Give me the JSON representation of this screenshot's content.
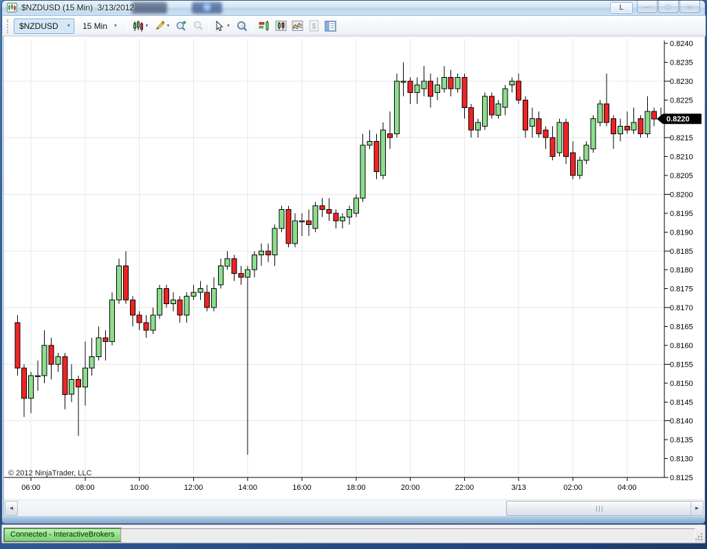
{
  "window": {
    "title": "$NZDUSD (15 Min)  3/13/2012",
    "link_button": "L",
    "minimize_glyph": "–",
    "maximize_glyph": "□",
    "close_glyph": "×"
  },
  "toolbar": {
    "instrument_value": "$NZDUSD",
    "interval_value": "15 Min",
    "dropdown_caret": "▼",
    "icon_names": [
      "chart-style-candles",
      "drawing-tools-pencil",
      "zoom-in",
      "zoom-out",
      "cursor",
      "data-box",
      "chart-trader",
      "data-series",
      "indicators",
      "strategies",
      "properties"
    ]
  },
  "chart": {
    "copyright": "© 2012 NinjaTrader, LLC"
  },
  "scrollbar": {
    "left_arrow": "◄",
    "right_arrow": "►"
  },
  "status_bar": {
    "connection_status": "Connected - InteractiveBrokers"
  },
  "chart_data": {
    "type": "candlestick",
    "instrument": "$NZDUSD",
    "interval": "15 Min",
    "date": "3/13/2012",
    "y_axis": {
      "min": 0.8125,
      "max": 0.824,
      "tick_step": 0.0005,
      "labels": [
        "0.8240",
        "0.8235",
        "0.8230",
        "0.8225",
        "0.8220",
        "0.8215",
        "0.8210",
        "0.8205",
        "0.8200",
        "0.8195",
        "0.8190",
        "0.8185",
        "0.8180",
        "0.8175",
        "0.8170",
        "0.8165",
        "0.8160",
        "0.8155",
        "0.8150",
        "0.8145",
        "0.8140",
        "0.8135",
        "0.8130",
        "0.8125"
      ],
      "grid_prices": [
        0.823,
        0.8215,
        0.82,
        0.8185,
        0.817,
        0.8155,
        0.814
      ],
      "last_price": 0.822,
      "last_price_label": "0.8220"
    },
    "x_axis": {
      "labels": [
        {
          "text": "06:00",
          "index": 2
        },
        {
          "text": "08:00",
          "index": 10
        },
        {
          "text": "10:00",
          "index": 18
        },
        {
          "text": "12:00",
          "index": 26
        },
        {
          "text": "14:00",
          "index": 34
        },
        {
          "text": "16:00",
          "index": 42
        },
        {
          "text": "18:00",
          "index": 50
        },
        {
          "text": "20:00",
          "index": 58
        },
        {
          "text": "22:00",
          "index": 66
        },
        {
          "text": "3/13",
          "index": 74
        },
        {
          "text": "02:00",
          "index": 82
        },
        {
          "text": "04:00",
          "index": 90
        }
      ]
    },
    "colors": {
      "up": "#8CDE8C",
      "down": "#EE2424",
      "wick": "#000000",
      "grid": "#E7E7E7",
      "axis": "#000000",
      "price_tag_bg": "#000000",
      "price_tag_fg": "#FFFFFF"
    },
    "candles": [
      {
        "t": "05:30",
        "o": 0.8166,
        "h": 0.8168,
        "l": 0.8152,
        "c": 0.8154
      },
      {
        "t": "05:45",
        "o": 0.8154,
        "h": 0.8155,
        "l": 0.8141,
        "c": 0.8146
      },
      {
        "t": "06:00",
        "o": 0.8146,
        "h": 0.8153,
        "l": 0.8142,
        "c": 0.8152
      },
      {
        "t": "06:15",
        "o": 0.8152,
        "h": 0.8156,
        "l": 0.8148,
        "c": 0.8152
      },
      {
        "t": "06:30",
        "o": 0.8152,
        "h": 0.8164,
        "l": 0.815,
        "c": 0.816
      },
      {
        "t": "06:45",
        "o": 0.816,
        "h": 0.8162,
        "l": 0.8151,
        "c": 0.8155
      },
      {
        "t": "07:00",
        "o": 0.8155,
        "h": 0.8158,
        "l": 0.8153,
        "c": 0.8157
      },
      {
        "t": "07:15",
        "o": 0.8157,
        "h": 0.8158,
        "l": 0.8143,
        "c": 0.8147
      },
      {
        "t": "07:30",
        "o": 0.8147,
        "h": 0.8155,
        "l": 0.8145,
        "c": 0.8151
      },
      {
        "t": "07:45",
        "o": 0.8151,
        "h": 0.8152,
        "l": 0.8136,
        "c": 0.8149
      },
      {
        "t": "08:00",
        "o": 0.8149,
        "h": 0.8161,
        "l": 0.8144,
        "c": 0.8154
      },
      {
        "t": "08:15",
        "o": 0.8154,
        "h": 0.8162,
        "l": 0.8152,
        "c": 0.8157
      },
      {
        "t": "08:30",
        "o": 0.8157,
        "h": 0.8165,
        "l": 0.8156,
        "c": 0.8162
      },
      {
        "t": "08:45",
        "o": 0.8162,
        "h": 0.8164,
        "l": 0.8156,
        "c": 0.8161
      },
      {
        "t": "09:00",
        "o": 0.8161,
        "h": 0.8174,
        "l": 0.816,
        "c": 0.8172
      },
      {
        "t": "09:15",
        "o": 0.8172,
        "h": 0.8183,
        "l": 0.8171,
        "c": 0.8181
      },
      {
        "t": "09:30",
        "o": 0.8181,
        "h": 0.8185,
        "l": 0.8171,
        "c": 0.8172
      },
      {
        "t": "09:45",
        "o": 0.8172,
        "h": 0.8173,
        "l": 0.8165,
        "c": 0.8168
      },
      {
        "t": "10:00",
        "o": 0.8168,
        "h": 0.8169,
        "l": 0.8164,
        "c": 0.8166
      },
      {
        "t": "10:15",
        "o": 0.8166,
        "h": 0.8168,
        "l": 0.8162,
        "c": 0.8164
      },
      {
        "t": "10:30",
        "o": 0.8164,
        "h": 0.817,
        "l": 0.8163,
        "c": 0.8168
      },
      {
        "t": "10:45",
        "o": 0.8168,
        "h": 0.8176,
        "l": 0.8167,
        "c": 0.8175
      },
      {
        "t": "11:00",
        "o": 0.8175,
        "h": 0.8176,
        "l": 0.817,
        "c": 0.8171
      },
      {
        "t": "11:15",
        "o": 0.8171,
        "h": 0.8174,
        "l": 0.8169,
        "c": 0.8172
      },
      {
        "t": "11:30",
        "o": 0.8172,
        "h": 0.8173,
        "l": 0.8166,
        "c": 0.8168
      },
      {
        "t": "11:45",
        "o": 0.8168,
        "h": 0.8174,
        "l": 0.8166,
        "c": 0.8173
      },
      {
        "t": "12:00",
        "o": 0.8173,
        "h": 0.8176,
        "l": 0.8172,
        "c": 0.8174
      },
      {
        "t": "12:15",
        "o": 0.8174,
        "h": 0.8177,
        "l": 0.8172,
        "c": 0.8175
      },
      {
        "t": "12:30",
        "o": 0.8174,
        "h": 0.8176,
        "l": 0.8169,
        "c": 0.817
      },
      {
        "t": "12:45",
        "o": 0.817,
        "h": 0.8178,
        "l": 0.8169,
        "c": 0.8175
      },
      {
        "t": "13:00",
        "o": 0.8176,
        "h": 0.8183,
        "l": 0.8175,
        "c": 0.8181
      },
      {
        "t": "13:15",
        "o": 0.8181,
        "h": 0.8185,
        "l": 0.818,
        "c": 0.8183
      },
      {
        "t": "13:30",
        "o": 0.8183,
        "h": 0.8184,
        "l": 0.8177,
        "c": 0.8179
      },
      {
        "t": "13:45",
        "o": 0.8179,
        "h": 0.8181,
        "l": 0.8176,
        "c": 0.8178
      },
      {
        "t": "14:00",
        "o": 0.8178,
        "h": 0.8181,
        "l": 0.8131,
        "c": 0.818
      },
      {
        "t": "14:15",
        "o": 0.818,
        "h": 0.8185,
        "l": 0.8178,
        "c": 0.8184
      },
      {
        "t": "14:30",
        "o": 0.8184,
        "h": 0.8187,
        "l": 0.8181,
        "c": 0.8185
      },
      {
        "t": "14:45",
        "o": 0.8185,
        "h": 0.8187,
        "l": 0.8182,
        "c": 0.8184
      },
      {
        "t": "15:00",
        "o": 0.8184,
        "h": 0.8192,
        "l": 0.8181,
        "c": 0.8191
      },
      {
        "t": "15:15",
        "o": 0.8191,
        "h": 0.8197,
        "l": 0.819,
        "c": 0.8196
      },
      {
        "t": "15:30",
        "o": 0.8196,
        "h": 0.8197,
        "l": 0.8186,
        "c": 0.8187
      },
      {
        "t": "15:45",
        "o": 0.8187,
        "h": 0.8195,
        "l": 0.8186,
        "c": 0.8193
      },
      {
        "t": "16:00",
        "o": 0.8193,
        "h": 0.8195,
        "l": 0.8189,
        "c": 0.8193
      },
      {
        "t": "16:15",
        "o": 0.8193,
        "h": 0.8196,
        "l": 0.8189,
        "c": 0.8192
      },
      {
        "t": "16:30",
        "o": 0.8191,
        "h": 0.8198,
        "l": 0.819,
        "c": 0.8197
      },
      {
        "t": "16:45",
        "o": 0.8197,
        "h": 0.8199,
        "l": 0.8194,
        "c": 0.8196
      },
      {
        "t": "17:00",
        "o": 0.8196,
        "h": 0.8199,
        "l": 0.8193,
        "c": 0.8195
      },
      {
        "t": "17:15",
        "o": 0.8195,
        "h": 0.8196,
        "l": 0.8191,
        "c": 0.8193
      },
      {
        "t": "17:30",
        "o": 0.8193,
        "h": 0.8195,
        "l": 0.8191,
        "c": 0.8194
      },
      {
        "t": "17:45",
        "o": 0.8194,
        "h": 0.8197,
        "l": 0.8192,
        "c": 0.8196
      },
      {
        "t": "18:00",
        "o": 0.8195,
        "h": 0.82,
        "l": 0.8194,
        "c": 0.8199
      },
      {
        "t": "18:15",
        "o": 0.8199,
        "h": 0.8216,
        "l": 0.8198,
        "c": 0.8213
      },
      {
        "t": "18:30",
        "o": 0.8213,
        "h": 0.8217,
        "l": 0.8212,
        "c": 0.8214
      },
      {
        "t": "18:45",
        "o": 0.8214,
        "h": 0.8216,
        "l": 0.8204,
        "c": 0.8206
      },
      {
        "t": "19:00",
        "o": 0.8205,
        "h": 0.8219,
        "l": 0.8204,
        "c": 0.8217
      },
      {
        "t": "19:15",
        "o": 0.8216,
        "h": 0.8222,
        "l": 0.8212,
        "c": 0.8215
      },
      {
        "t": "19:30",
        "o": 0.8216,
        "h": 0.8232,
        "l": 0.8215,
        "c": 0.823
      },
      {
        "t": "19:45",
        "o": 0.823,
        "h": 0.8235,
        "l": 0.8226,
        "c": 0.823
      },
      {
        "t": "20:00",
        "o": 0.823,
        "h": 0.8231,
        "l": 0.8224,
        "c": 0.8227
      },
      {
        "t": "20:15",
        "o": 0.8227,
        "h": 0.8231,
        "l": 0.8224,
        "c": 0.8229
      },
      {
        "t": "20:30",
        "o": 0.8228,
        "h": 0.8234,
        "l": 0.8226,
        "c": 0.823
      },
      {
        "t": "20:45",
        "o": 0.823,
        "h": 0.8232,
        "l": 0.8223,
        "c": 0.8226
      },
      {
        "t": "21:00",
        "o": 0.8227,
        "h": 0.8231,
        "l": 0.8225,
        "c": 0.8229
      },
      {
        "t": "21:15",
        "o": 0.8228,
        "h": 0.8234,
        "l": 0.8227,
        "c": 0.8231
      },
      {
        "t": "21:30",
        "o": 0.8231,
        "h": 0.8233,
        "l": 0.8226,
        "c": 0.8228
      },
      {
        "t": "21:45",
        "o": 0.8228,
        "h": 0.8232,
        "l": 0.8227,
        "c": 0.8231
      },
      {
        "t": "22:00",
        "o": 0.8231,
        "h": 0.8232,
        "l": 0.822,
        "c": 0.8223
      },
      {
        "t": "22:15",
        "o": 0.8223,
        "h": 0.8224,
        "l": 0.8215,
        "c": 0.8217
      },
      {
        "t": "22:30",
        "o": 0.8217,
        "h": 0.822,
        "l": 0.8215,
        "c": 0.8219
      },
      {
        "t": "22:45",
        "o": 0.8218,
        "h": 0.8227,
        "l": 0.8217,
        "c": 0.8226
      },
      {
        "t": "23:00",
        "o": 0.8226,
        "h": 0.8227,
        "l": 0.822,
        "c": 0.8221
      },
      {
        "t": "23:15",
        "o": 0.8221,
        "h": 0.8225,
        "l": 0.822,
        "c": 0.8224
      },
      {
        "t": "23:30",
        "o": 0.8223,
        "h": 0.8229,
        "l": 0.8221,
        "c": 0.8228
      },
      {
        "t": "23:45",
        "o": 0.8229,
        "h": 0.8231,
        "l": 0.8227,
        "c": 0.823
      },
      {
        "t": "00:00",
        "o": 0.823,
        "h": 0.8232,
        "l": 0.8224,
        "c": 0.8225
      },
      {
        "t": "00:15",
        "o": 0.8225,
        "h": 0.8226,
        "l": 0.8215,
        "c": 0.8217
      },
      {
        "t": "00:30",
        "o": 0.8218,
        "h": 0.8223,
        "l": 0.8215,
        "c": 0.822
      },
      {
        "t": "00:45",
        "o": 0.822,
        "h": 0.8222,
        "l": 0.8215,
        "c": 0.8216
      },
      {
        "t": "01:00",
        "o": 0.8217,
        "h": 0.8218,
        "l": 0.8212,
        "c": 0.8215
      },
      {
        "t": "01:15",
        "o": 0.8215,
        "h": 0.8218,
        "l": 0.8209,
        "c": 0.821
      },
      {
        "t": "01:30",
        "o": 0.8211,
        "h": 0.822,
        "l": 0.821,
        "c": 0.8219
      },
      {
        "t": "01:45",
        "o": 0.8219,
        "h": 0.822,
        "l": 0.8208,
        "c": 0.821
      },
      {
        "t": "02:00",
        "o": 0.8211,
        "h": 0.8214,
        "l": 0.8204,
        "c": 0.8205
      },
      {
        "t": "02:15",
        "o": 0.8205,
        "h": 0.821,
        "l": 0.8204,
        "c": 0.8209
      },
      {
        "t": "02:30",
        "o": 0.8209,
        "h": 0.8214,
        "l": 0.8208,
        "c": 0.8213
      },
      {
        "t": "02:45",
        "o": 0.8212,
        "h": 0.8221,
        "l": 0.8211,
        "c": 0.822
      },
      {
        "t": "03:00",
        "o": 0.8219,
        "h": 0.8225,
        "l": 0.8218,
        "c": 0.8224
      },
      {
        "t": "03:15",
        "o": 0.8224,
        "h": 0.8232,
        "l": 0.8218,
        "c": 0.8219
      },
      {
        "t": "03:30",
        "o": 0.822,
        "h": 0.8221,
        "l": 0.8212,
        "c": 0.8216
      },
      {
        "t": "03:45",
        "o": 0.8216,
        "h": 0.822,
        "l": 0.8214,
        "c": 0.8218
      },
      {
        "t": "04:00",
        "o": 0.8218,
        "h": 0.8222,
        "l": 0.8216,
        "c": 0.8217
      },
      {
        "t": "04:15",
        "o": 0.8217,
        "h": 0.8223,
        "l": 0.8216,
        "c": 0.8219
      },
      {
        "t": "04:30",
        "o": 0.822,
        "h": 0.8221,
        "l": 0.8215,
        "c": 0.8216
      },
      {
        "t": "04:45",
        "o": 0.8216,
        "h": 0.8226,
        "l": 0.8215,
        "c": 0.8222
      },
      {
        "t": "05:00",
        "o": 0.8222,
        "h": 0.8223,
        "l": 0.8218,
        "c": 0.822
      },
      {
        "t": "05:15",
        "o": 0.822,
        "h": 0.8223,
        "l": 0.8219,
        "c": 0.822
      }
    ]
  }
}
